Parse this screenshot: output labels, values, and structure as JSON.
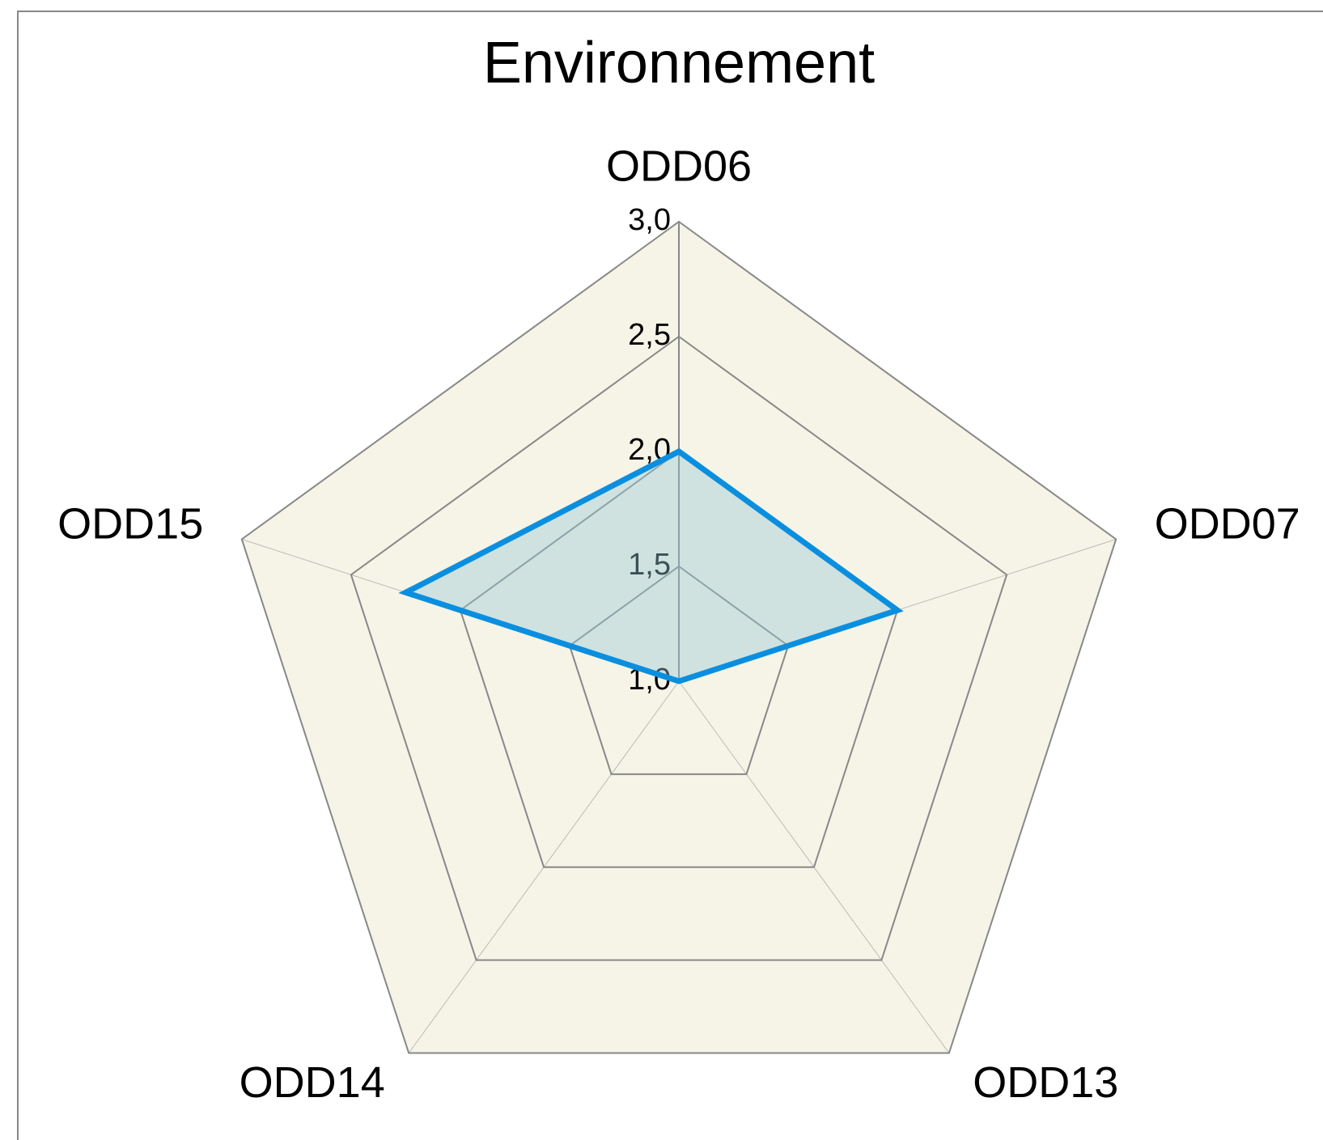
{
  "chart_data": {
    "type": "radar",
    "title": "Environnement",
    "categories": [
      "ODD06",
      "ODD07",
      "ODD13",
      "ODD14",
      "ODD15"
    ],
    "series": [
      {
        "name": "Environnement",
        "color": "#0a8fe0",
        "values": [
          2.0,
          2.0,
          1.0,
          1.0,
          2.25
        ]
      }
    ],
    "ylim": [
      1,
      3
    ],
    "yticks": [
      {
        "value": 1,
        "label": "1,0"
      },
      {
        "value": 1.5,
        "label": "1,5"
      },
      {
        "value": 2,
        "label": "2,0"
      },
      {
        "value": 2.5,
        "label": "2,5"
      },
      {
        "value": 3,
        "label": "3,0"
      }
    ],
    "grid": true
  }
}
